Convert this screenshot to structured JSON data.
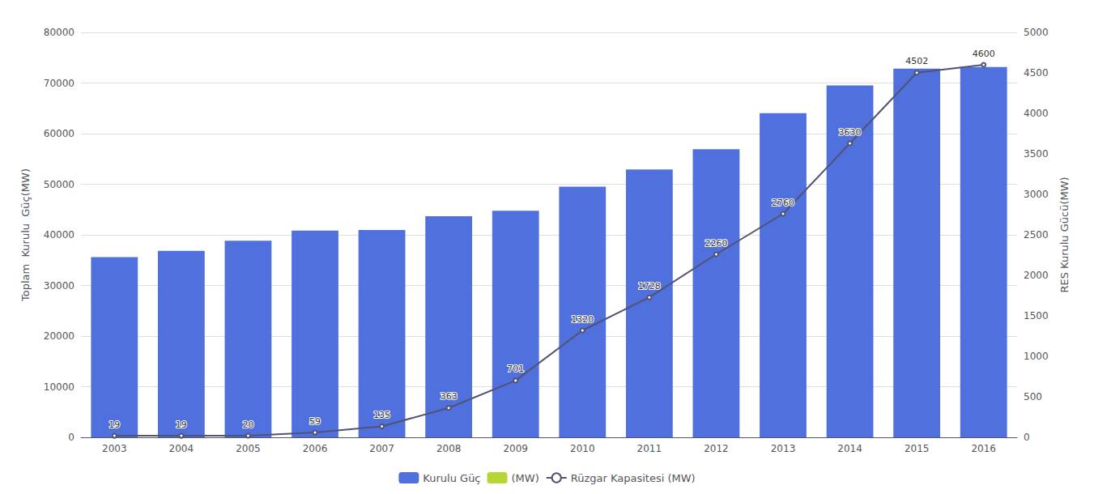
{
  "chart_data": {
    "type": "bar",
    "categories": [
      "2003",
      "2004",
      "2005",
      "2006",
      "2007",
      "2008",
      "2009",
      "2010",
      "2011",
      "2012",
      "2013",
      "2014",
      "2015",
      "2016"
    ],
    "ylabel": "Toplam  Kurulu  Güç(MW)",
    "y2label": "RES Kurulu Gücü(MW)",
    "series": [
      {
        "name": "Kurulu Güç",
        "type": "bar",
        "values": [
          35600,
          36824,
          38845,
          40835,
          40956,
          43674,
          44761,
          49524,
          52911,
          56921,
          64044,
          69519,
          72835,
          73148
        ]
      },
      {
        "name": "(MW)",
        "type": "bar",
        "values": [
          null,
          null,
          null,
          null,
          null,
          null,
          null,
          null,
          null,
          null,
          null,
          null,
          null,
          null
        ]
      },
      {
        "name": "Rüzgar Kapasitesi (MW)",
        "type": "line",
        "axis": "y2",
        "data_labels": true,
        "values": [
          19,
          19,
          20,
          59,
          135,
          363,
          701,
          1320,
          1728,
          2260,
          2760,
          3630,
          4502,
          4600
        ]
      }
    ],
    "ylim": [
      0,
      80000
    ],
    "yticks": [
      0,
      10000,
      20000,
      30000,
      40000,
      50000,
      60000,
      70000,
      80000
    ],
    "y2lim": [
      0,
      5000
    ],
    "y2ticks": [
      0,
      500,
      1000,
      1500,
      2000,
      2500,
      3000,
      3500,
      4000,
      4500,
      5000
    ],
    "grid": true,
    "legend": "bottom"
  }
}
